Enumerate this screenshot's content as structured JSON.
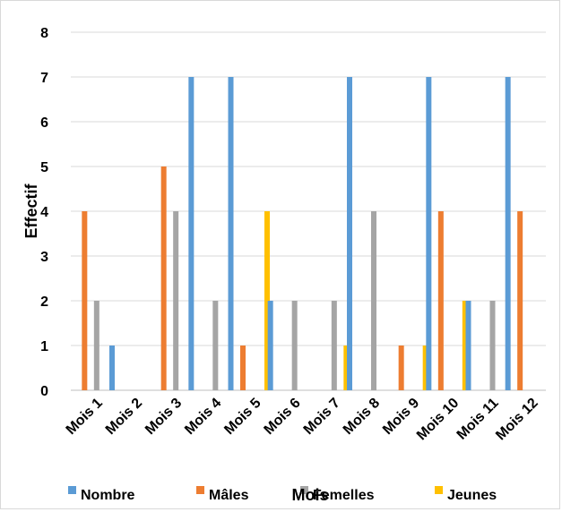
{
  "chart_data": {
    "type": "bar",
    "title": "",
    "xlabel": "Mois",
    "ylabel": "Effectif",
    "ylim": [
      0,
      8
    ],
    "yticks": [
      0,
      1,
      2,
      3,
      4,
      5,
      6,
      7,
      8
    ],
    "grid": true,
    "legend_position": "bottom",
    "categories": [
      "Mois 1",
      "Mois 2",
      "Mois 3",
      "Mois 4",
      "Mois 5",
      "Mois 6",
      "Mois 7",
      "Mois 8",
      "Mois 9",
      "Mois 10",
      "Mois 11",
      "Mois 12"
    ],
    "series": [
      {
        "name": "Nombre",
        "color": "#5b9bd5",
        "values": [
          0,
          1,
          0,
          7,
          7,
          2,
          0,
          7,
          0,
          7,
          2,
          7
        ]
      },
      {
        "name": "Mâles",
        "color": "#ed7d31",
        "values": [
          4,
          0,
          5,
          0,
          1,
          0,
          0,
          0,
          1,
          4,
          0,
          4
        ]
      },
      {
        "name": "Femelles",
        "color": "#a5a5a5",
        "values": [
          2,
          0,
          4,
          2,
          0,
          2,
          2,
          4,
          0,
          0,
          2,
          0
        ]
      },
      {
        "name": "Jeunes",
        "color": "#ffc000",
        "values": [
          0,
          0,
          0,
          0,
          4,
          0,
          1,
          0,
          1,
          2,
          0,
          0
        ]
      }
    ]
  }
}
